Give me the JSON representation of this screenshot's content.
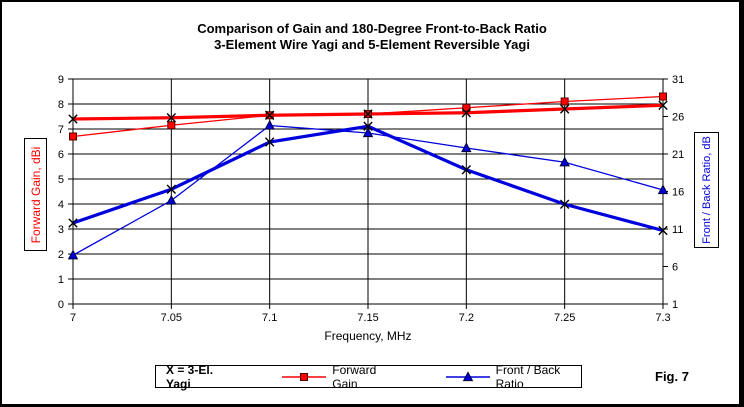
{
  "title": {
    "line1": "Comparison of Gain and 180-Degree Front-to-Back Ratio",
    "line2": "3-Element Wire Yagi and 5-Element Reversible Yagi"
  },
  "figure_label": "Fig. 7",
  "chart_data": {
    "type": "line",
    "x": [
      7,
      7.05,
      7.1,
      7.15,
      7.2,
      7.25,
      7.3
    ],
    "x_tick_labels": [
      "7",
      "7.05",
      "7.1",
      "7.15",
      "7.2",
      "7.25",
      "7.3"
    ],
    "xlabel": "Frequency, MHz",
    "grid": true,
    "left_axis": {
      "label": "Forward Gain, dBi",
      "min": 0,
      "max": 9,
      "ticks": [
        0,
        1,
        2,
        3,
        4,
        5,
        6,
        7,
        8,
        9
      ],
      "color": "#ff0000"
    },
    "right_axis": {
      "label": "Front / Back Ratio, dB",
      "min": 1,
      "max": 31,
      "ticks": [
        1,
        6,
        11,
        16,
        21,
        26,
        31
      ],
      "color": "#0000dd"
    },
    "series": [
      {
        "name": "Forward Gain (5-El. Reversible Yagi)",
        "axis": "left",
        "color": "#ff0000",
        "marker": "square",
        "width": 1.3,
        "values": [
          6.7,
          7.15,
          7.55,
          7.6,
          7.85,
          8.1,
          8.3
        ]
      },
      {
        "name": "Forward Gain (3-El. Wire Yagi, X markers)",
        "axis": "left",
        "color": "#ff0000",
        "marker": "x",
        "width": 3.2,
        "values": [
          7.4,
          7.45,
          7.55,
          7.6,
          7.65,
          7.8,
          7.95
        ]
      },
      {
        "name": "Front / Back Ratio (5-El. Reversible Yagi)",
        "axis": "right",
        "color": "#0000dd",
        "marker": "triangle",
        "width": 1.3,
        "values": [
          7.5,
          14.8,
          24.8,
          23.8,
          21.8,
          19.9,
          16.2
        ]
      },
      {
        "name": "Front / Back Ratio (3-El. Wire Yagi, X markers)",
        "axis": "right",
        "color": "#0000dd",
        "marker": "x",
        "width": 3.2,
        "values": [
          11.8,
          16.3,
          22.6,
          24.7,
          18.9,
          14.3,
          10.8
        ]
      }
    ]
  },
  "legend": {
    "note": "X = 3-El. Yagi",
    "items": [
      {
        "label": "Forward Gain",
        "color": "#ff0000",
        "marker": "square"
      },
      {
        "label": "Front / Back Ratio",
        "color": "#0000dd",
        "marker": "triangle"
      }
    ]
  }
}
